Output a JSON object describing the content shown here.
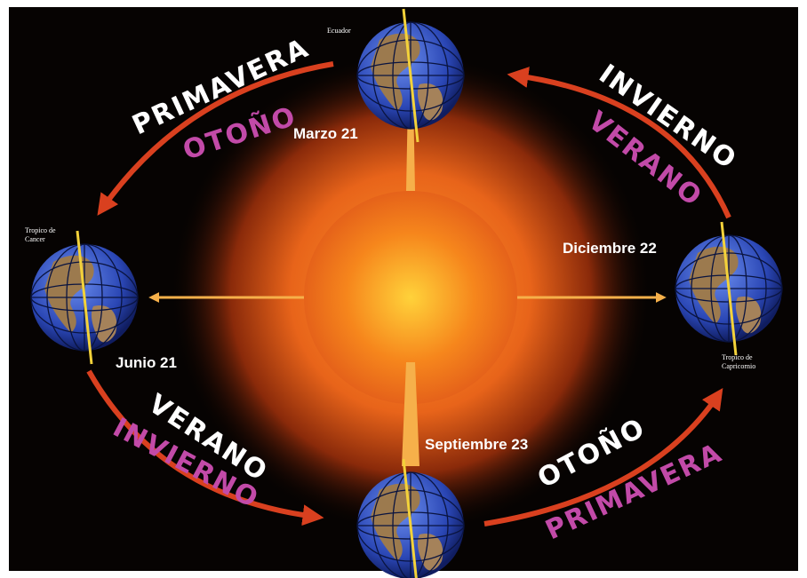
{
  "dates": {
    "march": "Marzo 21",
    "june": "Junio 21",
    "september": "Septiembre 23",
    "december": "Diciembre 22"
  },
  "labels": {
    "equator": "Ecuador",
    "cancer": [
      "Tropico de",
      "Cancer"
    ],
    "capricorn": [
      "Tropico de",
      "Capricornio"
    ]
  },
  "seasons": {
    "top_left": {
      "north": "PRIMAVERA",
      "south": "OTOÑO"
    },
    "top_right": {
      "north": "INVIERNO",
      "south": "VERANO"
    },
    "bottom_left": {
      "north": "VERANO",
      "south": "INVIERNO"
    },
    "bottom_right": {
      "north": "OTOÑO",
      "south": "PRIMAVERA"
    }
  }
}
